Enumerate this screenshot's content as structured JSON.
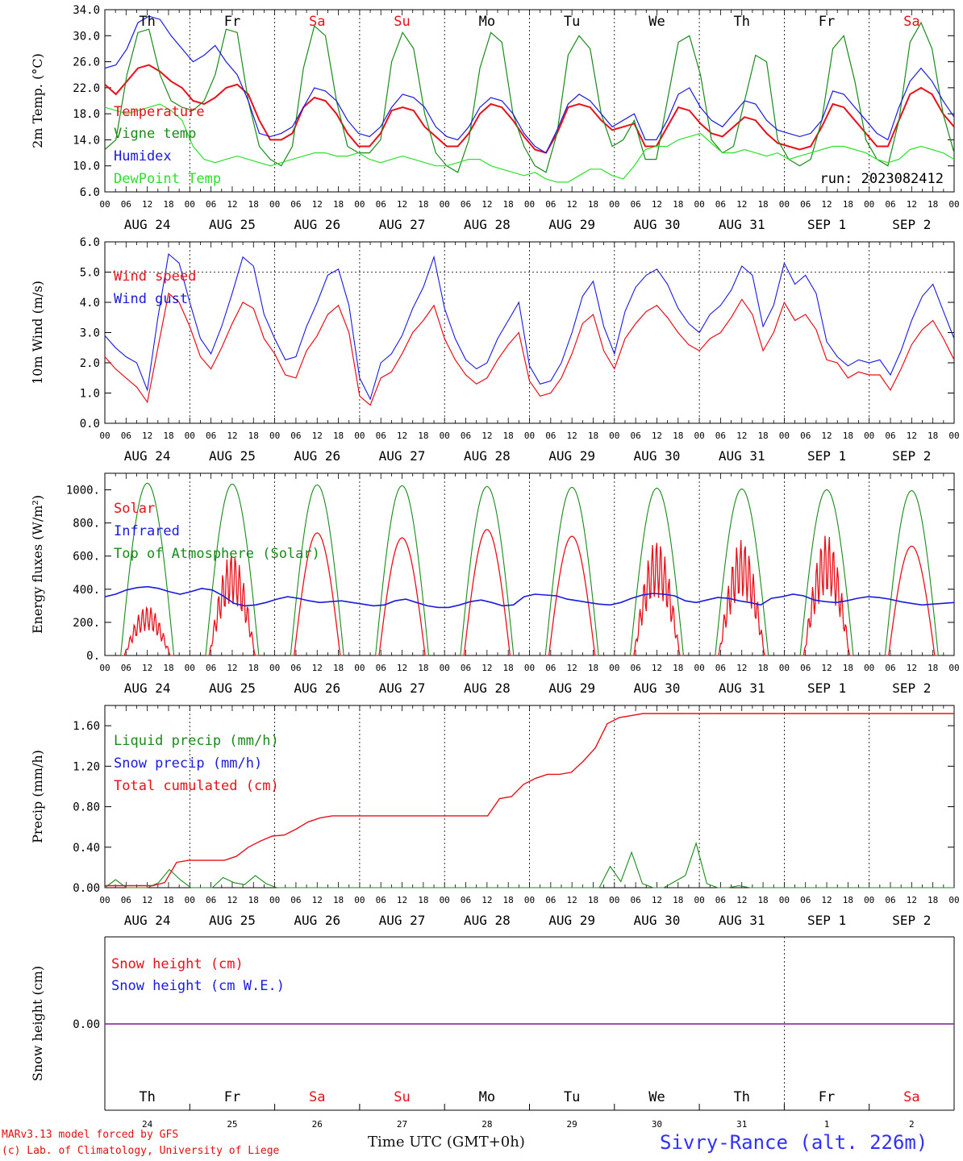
{
  "colors": {
    "red": "#e8101a",
    "green": "#1a8a1a",
    "blue": "#1a1ae0",
    "lightgreen": "#2ee02e",
    "purple": "#7f1a9a",
    "axis": "#000000"
  },
  "time_axis": {
    "hour_labels": [
      "00",
      "06",
      "12",
      "18"
    ],
    "final_label": "00",
    "dates": [
      "AUG 24",
      "AUG 25",
      "AUG 26",
      "AUG 27",
      "AUG 28",
      "AUG 29",
      "AUG 30",
      "AUG 31",
      "SEP  1",
      "SEP  2"
    ],
    "weekdays": [
      "Th",
      "Fr",
      "Sa",
      "Su",
      "Mo",
      "Tu",
      "We",
      "Th",
      "Fr",
      "Sa"
    ],
    "weekend_flags": [
      false,
      false,
      true,
      true,
      false,
      false,
      false,
      false,
      false,
      true
    ],
    "day_numbers": [
      "24",
      "25",
      "26",
      "27",
      "28",
      "29",
      "30",
      "31",
      "1",
      "2"
    ]
  },
  "footer": {
    "model": "MARv3.13 model forced by GFS",
    "lab": "(c) Lab. of Climatology, University of Liege",
    "time_label": "Time UTC (GMT+0h)",
    "station": "Sivry-Rance (alt. 226m)"
  },
  "chart_data": [
    {
      "id": "temp",
      "type": "line",
      "ylabel": "2m Temp. (°C)",
      "ylim": [
        6,
        34
      ],
      "yticks": [
        "6.0",
        "10.0",
        "14.0",
        "18.0",
        "22.0",
        "26.0",
        "30.0",
        "34.0"
      ],
      "run_label": "run: 2023082412",
      "show_weekdays": true,
      "series": [
        {
          "name": "Temperature",
          "color": "red",
          "values": [
            22.5,
            21,
            23,
            25,
            25.5,
            24.5,
            23,
            22,
            20,
            19.5,
            20.5,
            22,
            22.5,
            21,
            17,
            14,
            14,
            15,
            19,
            20.5,
            20,
            18,
            15,
            13,
            13,
            15,
            18.5,
            19,
            18.5,
            16,
            14.5,
            13,
            13,
            15,
            18,
            19.5,
            19,
            17,
            14.5,
            12.5,
            12,
            15,
            19,
            19.5,
            19,
            17,
            15.5,
            16,
            16.5,
            13,
            13,
            16,
            19,
            18.5,
            16.5,
            15,
            14.5,
            16,
            17.5,
            17,
            15,
            13.5,
            13,
            12.5,
            13,
            16,
            19.5,
            19,
            17,
            15,
            13,
            13,
            17,
            21,
            22,
            21,
            18,
            16
          ]
        },
        {
          "name": "Vigne temp",
          "color": "green",
          "values": [
            12.5,
            14,
            24,
            30.5,
            31,
            24,
            20,
            19,
            18.5,
            20,
            24,
            31,
            30.5,
            20,
            13,
            11,
            10,
            13,
            25,
            31.5,
            30,
            20,
            13,
            12,
            12,
            14,
            26,
            30.5,
            28,
            18,
            12,
            10,
            9,
            14,
            25,
            30.5,
            29,
            18,
            13,
            10,
            9,
            15,
            27,
            30,
            28,
            18,
            13,
            14,
            17,
            11,
            11,
            20,
            29,
            30,
            24,
            14,
            12,
            13,
            20,
            27,
            26,
            14,
            11,
            10,
            11,
            17,
            28,
            30,
            23,
            14,
            11,
            10,
            17,
            29,
            32,
            28,
            18,
            12
          ]
        },
        {
          "name": "Humidex",
          "color": "blue",
          "values": [
            25,
            25.5,
            28,
            32,
            33,
            32.5,
            30,
            28,
            26,
            27,
            28.5,
            26,
            24,
            20,
            15,
            14.5,
            15,
            16,
            19,
            22,
            21.5,
            20,
            17,
            15,
            14.5,
            16,
            19,
            21,
            20.5,
            19,
            16,
            14.5,
            14,
            16,
            19,
            20.5,
            20,
            18,
            15,
            13,
            12,
            15.5,
            19.5,
            21,
            20,
            18,
            16,
            17,
            18,
            14,
            14,
            17,
            21,
            22,
            19,
            17,
            16,
            18,
            20,
            19.5,
            17,
            15.5,
            15,
            14.5,
            15,
            17,
            21.5,
            21,
            19,
            17,
            15,
            14,
            19,
            23,
            25,
            23,
            20,
            17.5
          ]
        },
        {
          "name": "DewPoint Temp",
          "color": "lightgreen",
          "values": [
            19,
            18.5,
            18,
            18.5,
            19,
            19.5,
            18.5,
            17,
            13,
            11,
            10.5,
            11,
            11.5,
            11,
            10.5,
            10,
            10.5,
            11,
            11.5,
            12,
            12,
            11.5,
            11.5,
            12,
            11,
            10.5,
            11,
            11.5,
            11,
            10.5,
            10,
            10,
            10.5,
            11,
            11,
            10,
            9.5,
            9,
            8.5,
            9,
            8,
            7.5,
            7.5,
            8.5,
            9.5,
            9.5,
            8.5,
            8,
            10,
            12.5,
            13,
            13,
            14,
            14.5,
            15,
            13.5,
            12,
            12,
            12.5,
            12,
            11.5,
            12,
            11,
            11.5,
            12,
            12.5,
            13,
            13,
            12.5,
            12,
            11,
            10.5,
            11,
            12.5,
            13,
            12.5,
            12,
            11
          ]
        }
      ]
    },
    {
      "id": "wind",
      "type": "line",
      "ylabel": "10m Wind (m/s)",
      "ylim": [
        0,
        6
      ],
      "yticks": [
        "0.0",
        "1.0",
        "2.0",
        "3.0",
        "4.0",
        "5.0",
        "6.0"
      ],
      "ref_line": 5.0,
      "series": [
        {
          "name": "Wind speed",
          "color": "red",
          "values": [
            2.2,
            1.8,
            1.5,
            1.2,
            0.7,
            2.5,
            4.3,
            4.0,
            3.2,
            2.2,
            1.8,
            2.5,
            3.3,
            4.0,
            3.8,
            2.8,
            2.3,
            1.6,
            1.5,
            2.4,
            2.9,
            3.6,
            3.9,
            3.0,
            0.9,
            0.6,
            1.5,
            1.7,
            2.3,
            3.0,
            3.4,
            3.9,
            2.8,
            2.1,
            1.6,
            1.3,
            1.5,
            2.1,
            2.6,
            3.0,
            1.4,
            0.9,
            1.0,
            1.5,
            2.3,
            3.3,
            3.6,
            2.4,
            1.8,
            2.8,
            3.3,
            3.7,
            3.9,
            3.5,
            3.0,
            2.6,
            2.4,
            2.8,
            3.0,
            3.5,
            4.1,
            3.6,
            2.4,
            3.0,
            4.0,
            3.4,
            3.6,
            3.1,
            2.1,
            2.0,
            1.5,
            1.7,
            1.6,
            1.6,
            1.1,
            1.8,
            2.6,
            3.1,
            3.4,
            2.8,
            2.1
          ]
        },
        {
          "name": "Wind gust",
          "color": "blue",
          "values": [
            2.9,
            2.5,
            2.2,
            2.0,
            1.1,
            3.5,
            5.6,
            5.3,
            4.0,
            2.8,
            2.3,
            3.2,
            4.3,
            5.5,
            5.2,
            3.6,
            2.8,
            2.1,
            2.2,
            3.2,
            4.0,
            4.9,
            5.1,
            3.9,
            1.5,
            0.8,
            2.0,
            2.3,
            2.9,
            3.8,
            4.5,
            5.5,
            3.8,
            2.8,
            2.1,
            1.8,
            2.0,
            2.8,
            3.4,
            4.0,
            1.9,
            1.3,
            1.4,
            2.0,
            3.0,
            4.2,
            4.7,
            3.2,
            2.3,
            3.7,
            4.5,
            4.9,
            5.1,
            4.6,
            3.8,
            3.3,
            3.0,
            3.6,
            3.9,
            4.4,
            5.2,
            4.9,
            3.2,
            3.9,
            5.3,
            4.6,
            4.9,
            4.3,
            2.7,
            2.2,
            1.9,
            2.1,
            2.0,
            2.1,
            1.6,
            2.4,
            3.4,
            4.2,
            4.6,
            3.7,
            2.8
          ]
        }
      ]
    },
    {
      "id": "energy",
      "type": "line",
      "ylabel": "Energy fluxes (W/m²)",
      "ylim": [
        0,
        1100
      ],
      "yticks": [
        "0.",
        "200.",
        "400.",
        "600.",
        "800.",
        "1000."
      ],
      "ytick_values": [
        0,
        200,
        400,
        600,
        800,
        1000
      ],
      "series": [
        {
          "name": "Solar",
          "color": "red",
          "daily_peak": [
            300,
            620,
            740,
            710,
            760,
            720,
            700,
            700,
            730,
            660
          ]
        },
        {
          "name": "Infrared",
          "color": "blue",
          "values": [
            355,
            370,
            395,
            410,
            415,
            405,
            385,
            370,
            385,
            405,
            395,
            360,
            315,
            300,
            305,
            320,
            340,
            355,
            345,
            330,
            320,
            325,
            330,
            320,
            310,
            300,
            305,
            330,
            340,
            320,
            300,
            290,
            290,
            305,
            325,
            335,
            320,
            300,
            305,
            355,
            370,
            365,
            360,
            340,
            330,
            320,
            310,
            305,
            320,
            345,
            365,
            375,
            370,
            360,
            330,
            320,
            335,
            350,
            345,
            330,
            320,
            305,
            345,
            355,
            370,
            360,
            335,
            325,
            320,
            330,
            345,
            355,
            350,
            340,
            325,
            315,
            305,
            310,
            315,
            320
          ]
        },
        {
          "name": "Top of Atmosphere (Solar)",
          "color": "green",
          "daily_peak": [
            1040,
            1035,
            1030,
            1025,
            1020,
            1015,
            1010,
            1005,
            1000,
            995
          ]
        }
      ]
    },
    {
      "id": "precip",
      "type": "line",
      "ylabel": "Precip (mm/h)",
      "ylim": [
        0,
        1.8
      ],
      "yticks": [
        "0.00",
        "0.40",
        "0.80",
        "1.20",
        "1.60"
      ],
      "ytick_values": [
        0,
        0.4,
        0.8,
        1.2,
        1.6
      ],
      "series": [
        {
          "name": "Liquid precip (mm/h)",
          "color": "green",
          "values": [
            0,
            0.08,
            0,
            0,
            0,
            0.05,
            0.18,
            0.08,
            0,
            0,
            0,
            0.1,
            0.05,
            0.03,
            0.12,
            0.04,
            0,
            0,
            0,
            0,
            0,
            0,
            0,
            0,
            0,
            0,
            0,
            0,
            0,
            0,
            0,
            0,
            0,
            0,
            0,
            0,
            0,
            0,
            0,
            0,
            0,
            0,
            0,
            0,
            0,
            0,
            0,
            0.21,
            0.06,
            0.35,
            0.04,
            0,
            0,
            0.06,
            0.12,
            0.44,
            0.04,
            0,
            0,
            0.02,
            0,
            0,
            0,
            0,
            0,
            0,
            0,
            0,
            0,
            0,
            0,
            0,
            0,
            0,
            0,
            0,
            0,
            0,
            0,
            0
          ]
        },
        {
          "name": "Snow precip (mm/h)",
          "color": "blue",
          "values": []
        },
        {
          "name": "Total cumulated (cm)",
          "color": "red",
          "values": [
            0.02,
            0.02,
            0.02,
            0.02,
            0.02,
            0.05,
            0.25,
            0.27,
            0.27,
            0.27,
            0.27,
            0.31,
            0.4,
            0.46,
            0.51,
            0.52,
            0.58,
            0.65,
            0.69,
            0.71,
            0.71,
            0.71,
            0.71,
            0.71,
            0.71,
            0.71,
            0.71,
            0.71,
            0.71,
            0.71,
            0.71,
            0.71,
            0.71,
            0.88,
            0.9,
            1.02,
            1.08,
            1.12,
            1.12,
            1.14,
            1.25,
            1.38,
            1.62,
            1.68,
            1.7,
            1.72,
            1.72,
            1.72,
            1.72,
            1.72,
            1.72,
            1.72,
            1.72,
            1.72,
            1.72,
            1.72,
            1.72,
            1.72,
            1.72,
            1.72,
            1.72,
            1.72,
            1.72,
            1.72,
            1.72,
            1.72,
            1.72,
            1.72,
            1.72,
            1.72,
            1.72,
            1.72
          ]
        }
      ]
    },
    {
      "id": "snow",
      "type": "line",
      "ylabel": "Snow height (cm)",
      "yticks": [
        "0.00"
      ],
      "series": [
        {
          "name": "Snow height (cm)",
          "color": "red",
          "values": [
            0,
            0
          ]
        },
        {
          "name": "Snow height (cm W.E.)",
          "color": "blue",
          "values": [
            0,
            0
          ]
        }
      ]
    }
  ]
}
